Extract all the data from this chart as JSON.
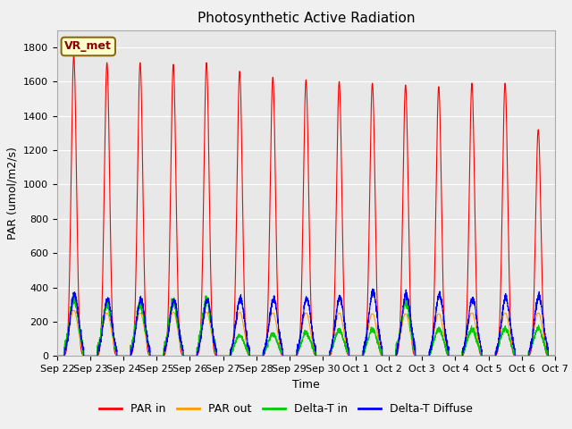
{
  "title": "Photosynthetic Active Radiation",
  "ylabel": "PAR (umol/m2/s)",
  "xlabel": "Time",
  "legend_label": "VR_met",
  "series_labels": [
    "PAR in",
    "PAR out",
    "Delta-T in",
    "Delta-T Diffuse"
  ],
  "series_colors": [
    "#ff0000",
    "#ff9900",
    "#00cc00",
    "#0000ff"
  ],
  "ylim": [
    0,
    1900
  ],
  "yticks": [
    0,
    200,
    400,
    600,
    800,
    1000,
    1200,
    1400,
    1600,
    1800
  ],
  "xtick_labels": [
    "Sep 22",
    "Sep 23",
    "Sep 24",
    "Sep 25",
    "Sep 26",
    "Sep 27",
    "Sep 28",
    "Sep 29",
    "Sep 30",
    "Oct 1",
    "Oct 2",
    "Oct 3",
    "Oct 4",
    "Oct 5",
    "Oct 6",
    "Oct 7"
  ],
  "n_days": 15,
  "par_in_peaks": [
    1750,
    1710,
    1710,
    1700,
    1710,
    1660,
    1625,
    1610,
    1600,
    1590,
    1580,
    1570,
    1590,
    1590,
    1320
  ],
  "par_out_peaks": [
    270,
    255,
    255,
    260,
    260,
    260,
    255,
    255,
    255,
    250,
    250,
    250,
    255,
    255,
    255
  ],
  "delta_t_peaks": [
    330,
    305,
    300,
    305,
    325,
    120,
    130,
    135,
    150,
    155,
    310,
    155,
    155,
    160,
    160
  ],
  "delta_td_peaks": [
    360,
    330,
    330,
    325,
    325,
    335,
    335,
    335,
    340,
    375,
    360,
    355,
    335,
    340,
    350
  ],
  "background_color": "#f0f0f0",
  "plot_bg_color": "#e8e8e8",
  "grid_color": "#ffffff",
  "title_fontsize": 11,
  "axis_fontsize": 9,
  "tick_fontsize": 8,
  "legend_fontsize": 9
}
